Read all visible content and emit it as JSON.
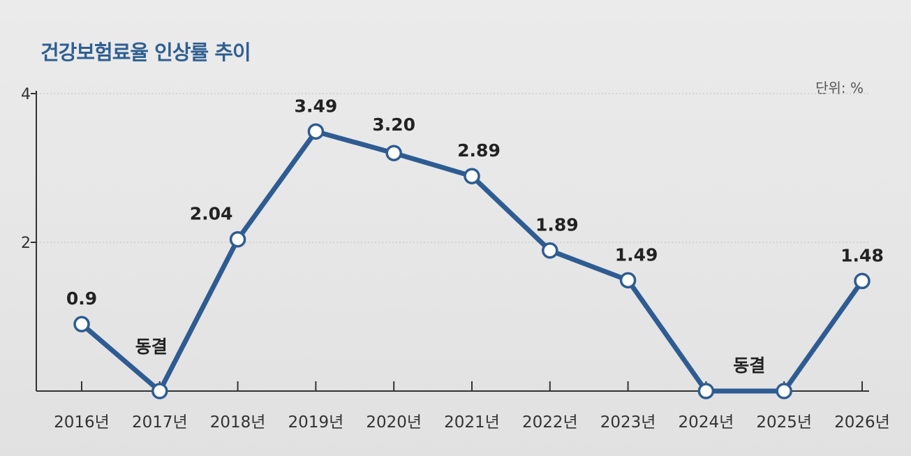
{
  "title": "건강보험료율 인상률 추이",
  "unit_label": "단위: %",
  "colors": {
    "line": "#2e5c92",
    "title": "#2f5f91",
    "grid": "#bdbdbd"
  },
  "chart_data": {
    "type": "line",
    "title": "건강보험료율 인상률 추이",
    "xlabel": "",
    "ylabel": "",
    "categories": [
      "2016년",
      "2017년",
      "2018년",
      "2019년",
      "2020년",
      "2021년",
      "2022년",
      "2023년",
      "2024년",
      "2025년",
      "2026년"
    ],
    "series": [
      {
        "values": [
          0.9,
          0,
          2.04,
          3.49,
          3.2,
          2.89,
          1.89,
          1.49,
          0,
          0,
          1.48
        ]
      }
    ],
    "data_labels": [
      "0.9",
      "동결",
      "2.04",
      "3.49",
      "3.20",
      "2.89",
      "1.89",
      "1.49",
      "",
      "동결",
      "1.48"
    ],
    "ylim": [
      0,
      4
    ],
    "yticks": [
      "4",
      "2"
    ],
    "ytick_values": [
      4,
      2
    ],
    "grid": true,
    "legend": "none"
  }
}
